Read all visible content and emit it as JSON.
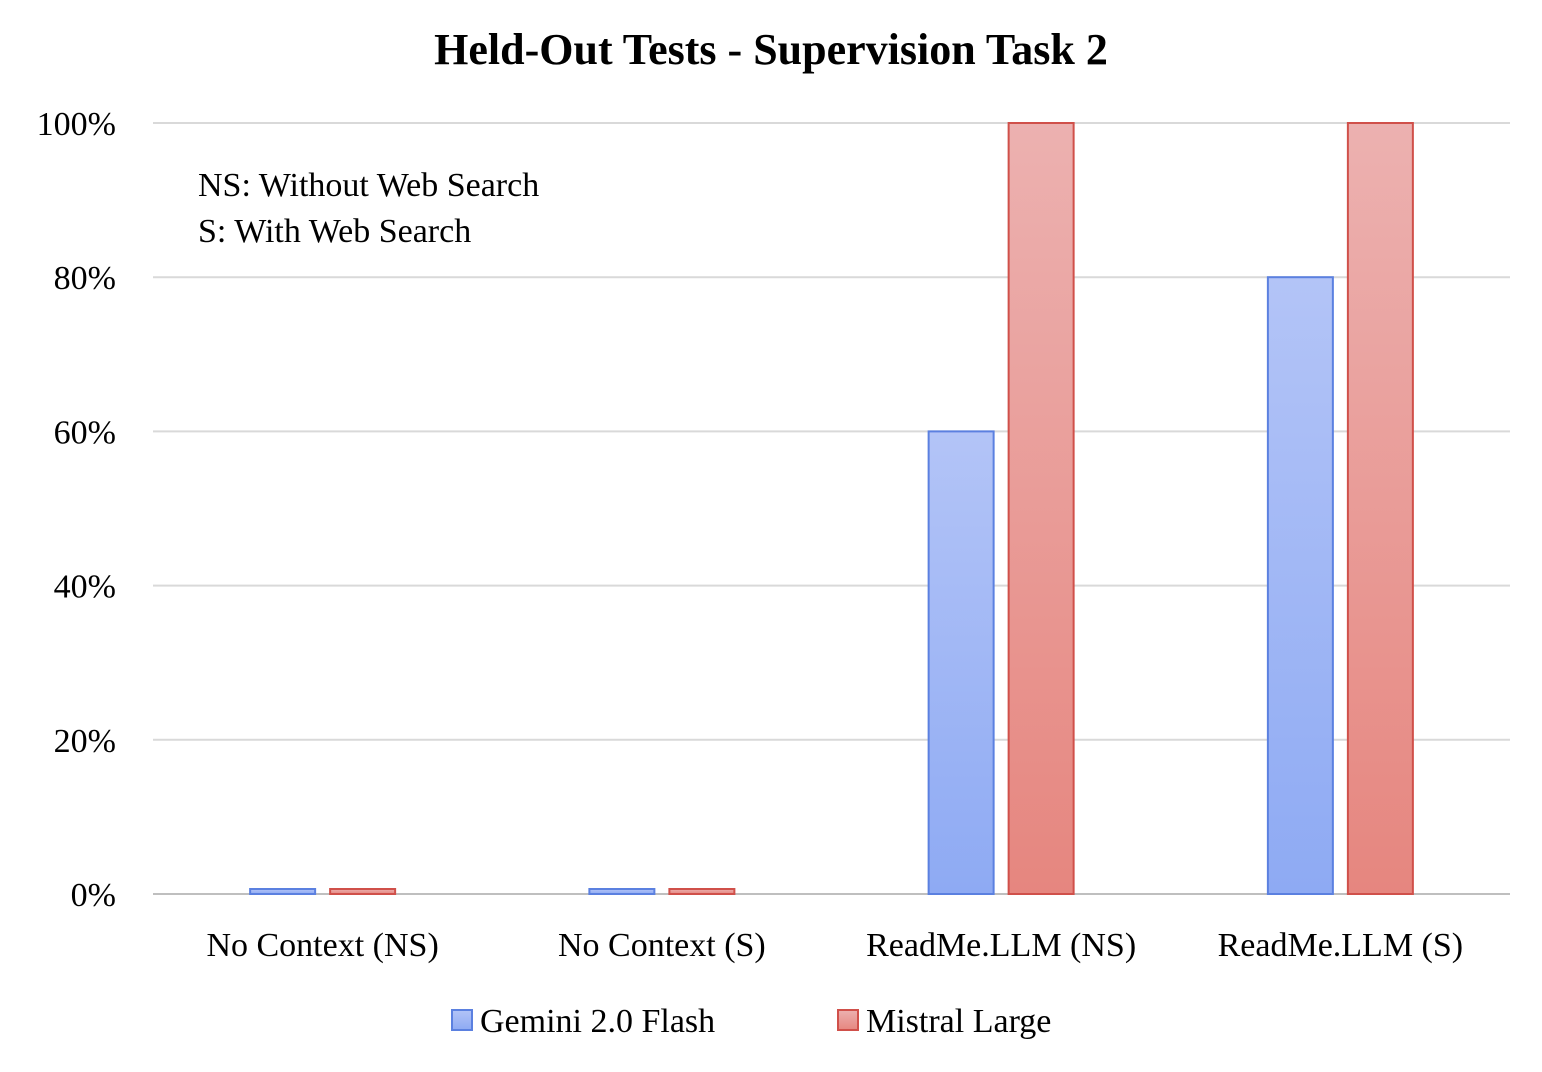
{
  "chart_data": {
    "type": "bar",
    "title": "Held-Out Tests - Supervision Task 2",
    "annotations": [
      "NS: Without Web Search",
      "S: With Web Search"
    ],
    "categories": [
      "No Context (NS)",
      "No Context (S)",
      "ReadMe.LLM (NS)",
      "ReadMe.LLM (S)"
    ],
    "series": [
      {
        "name": "Gemini 2.0 Flash",
        "values": [
          0,
          0,
          60,
          80
        ],
        "color": "#8eaaf3",
        "border": "#5b80e0"
      },
      {
        "name": "Mistral Large",
        "values": [
          0,
          0,
          100,
          100
        ],
        "color": "#e8898a",
        "border": "#d0504a"
      }
    ],
    "ylim": [
      0,
      100
    ],
    "yticks": [
      "0%",
      "20%",
      "40%",
      "60%",
      "80%",
      "100%"
    ],
    "ytick_values": [
      0,
      20,
      40,
      60,
      80,
      100
    ],
    "xlabel": "",
    "ylabel": "",
    "grid": true,
    "legend_position": "bottom"
  }
}
